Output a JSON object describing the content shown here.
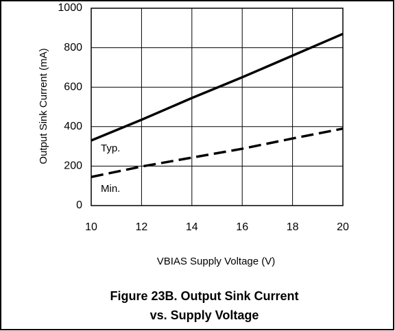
{
  "chart_data": {
    "type": "line",
    "title": [
      "Figure 23B.  Output Sink Current",
      "vs. Supply Voltage"
    ],
    "xlabel": "VBIAS Supply Voltage (V)",
    "ylabel": "Output Sink Current (mA)",
    "x": [
      10,
      12,
      14,
      16,
      18,
      20
    ],
    "series": [
      {
        "name": "Typ.",
        "color": "#000000",
        "dash": false,
        "values": [
          330,
          435,
          545,
          650,
          760,
          870
        ]
      },
      {
        "name": "Min.",
        "color": "#000000",
        "dash": true,
        "values": [
          145,
          198,
          243,
          288,
          340,
          390
        ]
      }
    ],
    "xlim": [
      10,
      20
    ],
    "xticks": [
      10,
      12,
      14,
      16,
      18,
      20
    ],
    "ylim": [
      0,
      1000
    ],
    "yticks": [
      0,
      200,
      400,
      600,
      800,
      1000
    ],
    "grid": true
  }
}
